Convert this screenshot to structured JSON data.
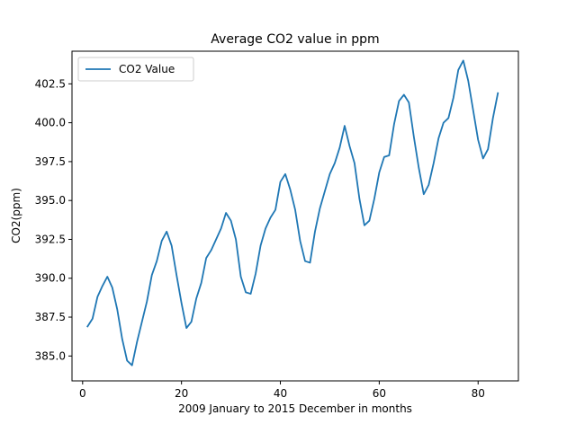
{
  "chart_data": {
    "type": "line",
    "title": "Average CO2 value in ppm",
    "xlabel": "2009 January to 2015 December in months",
    "ylabel": "CO2(ppm)",
    "xlim": [
      -2.15,
      88.15
    ],
    "ylim": [
      383.4,
      404.6
    ],
    "xticks": [
      0,
      20,
      40,
      60,
      80
    ],
    "xtick_labels": [
      "0",
      "20",
      "40",
      "60",
      "80"
    ],
    "yticks": [
      385.0,
      387.5,
      390.0,
      392.5,
      395.0,
      397.5,
      400.0,
      402.5
    ],
    "ytick_labels": [
      "385.0",
      "387.5",
      "390.0",
      "392.5",
      "395.0",
      "397.5",
      "400.0",
      "402.5"
    ],
    "legend": {
      "position": "top-left",
      "entries": [
        "CO2 Value"
      ]
    },
    "grid": false,
    "colors": {
      "series": "#1f77b4",
      "axes": "#000000",
      "legend_border": "#cccccc"
    },
    "series": [
      {
        "name": "CO2 Value",
        "x": [
          1,
          2,
          3,
          4,
          5,
          6,
          7,
          8,
          9,
          10,
          11,
          12,
          13,
          14,
          15,
          16,
          17,
          18,
          19,
          20,
          21,
          22,
          23,
          24,
          25,
          26,
          27,
          28,
          29,
          30,
          31,
          32,
          33,
          34,
          35,
          36,
          37,
          38,
          39,
          40,
          41,
          42,
          43,
          44,
          45,
          46,
          47,
          48,
          49,
          50,
          51,
          52,
          53,
          54,
          55,
          56,
          57,
          58,
          59,
          60,
          61,
          62,
          63,
          64,
          65,
          66,
          67,
          68,
          69,
          70,
          71,
          72,
          73,
          74,
          75,
          76,
          77,
          78,
          79,
          80,
          81,
          82,
          83,
          84
        ],
        "values": [
          386.9,
          387.4,
          388.8,
          389.5,
          390.1,
          389.4,
          388.0,
          386.1,
          384.7,
          384.4,
          385.9,
          387.2,
          388.5,
          390.2,
          391.1,
          392.4,
          393.0,
          392.1,
          390.2,
          388.4,
          386.8,
          387.2,
          388.7,
          389.7,
          391.3,
          391.8,
          392.5,
          393.2,
          394.2,
          393.7,
          392.5,
          390.1,
          389.1,
          389.0,
          390.3,
          392.1,
          393.2,
          393.9,
          394.4,
          396.2,
          396.7,
          395.7,
          394.4,
          392.4,
          391.1,
          391.0,
          393.0,
          394.5,
          395.6,
          396.7,
          397.4,
          398.4,
          399.8,
          398.5,
          397.4,
          395.1,
          393.4,
          393.7,
          395.1,
          396.8,
          397.8,
          397.9,
          399.9,
          401.4,
          401.8,
          401.3,
          399.1,
          397.1,
          395.4,
          396.0,
          397.4,
          399.0,
          400.0,
          400.3,
          401.6,
          403.4,
          404.0,
          402.7,
          400.8,
          398.9,
          397.7,
          398.3,
          400.3,
          401.9
        ]
      }
    ]
  }
}
